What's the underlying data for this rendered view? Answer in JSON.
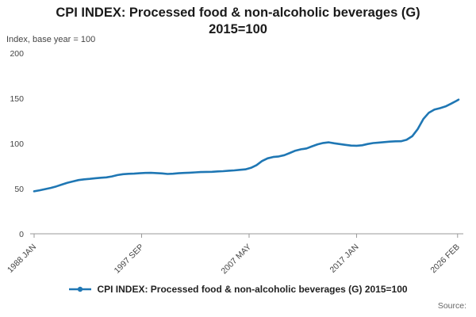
{
  "page": {
    "title": "CPI INDEX: Processed food & non-alcoholic beverages (G) 2015=100",
    "subtitle": "Index, base year = 100",
    "legend_label": "CPI INDEX: Processed food & non-alcoholic beverages (G) 2015=100",
    "source_label": "Source:"
  },
  "chart_data": {
    "type": "line",
    "title": "CPI INDEX: Processed food & non-alcoholic beverages (G) 2015=100",
    "subtitle": "Index, base year = 100",
    "xlabel": "",
    "ylabel": "Index, base year = 100",
    "ylim": [
      0,
      200
    ],
    "xlim": [
      1988.0,
      2026.17
    ],
    "grid": false,
    "legend_position": "bottom",
    "y_ticks": [
      0,
      50,
      100,
      150,
      200
    ],
    "x_ticks": [
      {
        "label": "1988 JAN",
        "x": 1988.0
      },
      {
        "label": "1997 SEP",
        "x": 1997.667
      },
      {
        "label": "2007 MAY",
        "x": 2007.333
      },
      {
        "label": "2017 JAN",
        "x": 2017.0
      },
      {
        "label": "2026 FEB",
        "x": 2026.083
      }
    ],
    "series": [
      {
        "name": "CPI INDEX: Processed food & non-alcoholic beverages (G) 2015=100",
        "color": "#1f77b4",
        "x": [
          1988.0,
          1988.5,
          1989.0,
          1989.5,
          1990.0,
          1990.5,
          1991.0,
          1991.5,
          1992.0,
          1992.5,
          1993.0,
          1993.5,
          1994.0,
          1994.5,
          1995.0,
          1995.5,
          1996.0,
          1996.5,
          1997.0,
          1997.5,
          1998.0,
          1998.5,
          1999.0,
          1999.5,
          2000.0,
          2000.5,
          2001.0,
          2001.5,
          2002.0,
          2002.5,
          2003.0,
          2003.5,
          2004.0,
          2004.5,
          2005.0,
          2005.5,
          2006.0,
          2006.5,
          2007.0,
          2007.5,
          2008.0,
          2008.5,
          2009.0,
          2009.5,
          2010.0,
          2010.5,
          2011.0,
          2011.5,
          2012.0,
          2012.5,
          2013.0,
          2013.5,
          2014.0,
          2014.5,
          2015.0,
          2015.5,
          2016.0,
          2016.5,
          2017.0,
          2017.5,
          2018.0,
          2018.5,
          2019.0,
          2019.5,
          2020.0,
          2020.5,
          2021.0,
          2021.5,
          2022.0,
          2022.5,
          2023.0,
          2023.5,
          2024.0,
          2024.5,
          2025.0,
          2025.5,
          2026.0,
          2026.17
        ],
        "values": [
          47.0,
          48.2,
          49.5,
          50.8,
          52.5,
          54.5,
          56.5,
          58.0,
          59.5,
          60.3,
          60.8,
          61.5,
          62.0,
          62.5,
          63.5,
          65.0,
          66.0,
          66.4,
          66.6,
          67.0,
          67.4,
          67.5,
          67.2,
          66.8,
          66.2,
          66.5,
          67.0,
          67.4,
          67.6,
          68.0,
          68.3,
          68.5,
          68.6,
          69.0,
          69.3,
          69.8,
          70.2,
          70.8,
          71.3,
          73.0,
          76.0,
          80.5,
          83.5,
          85.0,
          85.6,
          87.0,
          89.5,
          92.0,
          93.5,
          94.5,
          96.8,
          99.0,
          100.5,
          101.2,
          100.2,
          99.3,
          98.4,
          97.6,
          97.5,
          98.0,
          99.4,
          100.4,
          101.0,
          101.5,
          102.0,
          102.4,
          102.5,
          104.0,
          108.0,
          116.0,
          127.0,
          134.0,
          137.5,
          139.0,
          141.0,
          144.0,
          147.3,
          148.5
        ]
      }
    ]
  }
}
